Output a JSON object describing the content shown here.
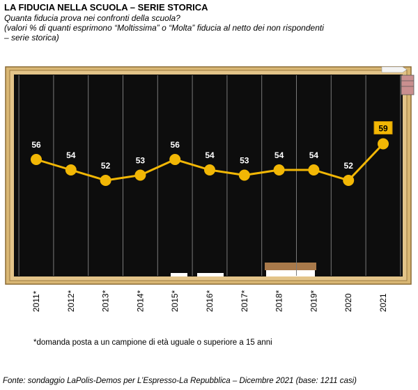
{
  "title": "LA FIDUCIA NELLA SCUOLA – SERIE STORICA",
  "subtitle": {
    "line1": "Quanta fiducia prova nei confronti della scuola?",
    "line2": "(valori % di quanti esprimono “Moltissima” o “Molta” fiducia al netto dei non rispondenti",
    "line3": "– serie storica)"
  },
  "footnote": "*domanda posta a un campione di età uguale o superiore a 15 anni",
  "source": "Fonte: sondaggio LaPolis-Demos per L’Espresso-La Repubblica – Dicembre 2021 (base: 1211 casi)",
  "colors": {
    "board": "#0d0d0d",
    "frame": "#d9b774",
    "frame_dark": "#8a6a34",
    "line": "#f2b705",
    "point": "#f2b705",
    "chalk_lines": "#7a7a7a"
  },
  "chart_data": {
    "type": "line",
    "categories": [
      "2011*",
      "2012*",
      "2013*",
      "2014*",
      "2015*",
      "2016*",
      "2017*",
      "2018*",
      "2019*",
      "2020",
      "2021"
    ],
    "values": [
      56,
      54,
      52,
      53,
      56,
      54,
      53,
      54,
      54,
      52,
      59
    ],
    "highlight_last": true,
    "grid": "vertical",
    "legend": "none"
  }
}
